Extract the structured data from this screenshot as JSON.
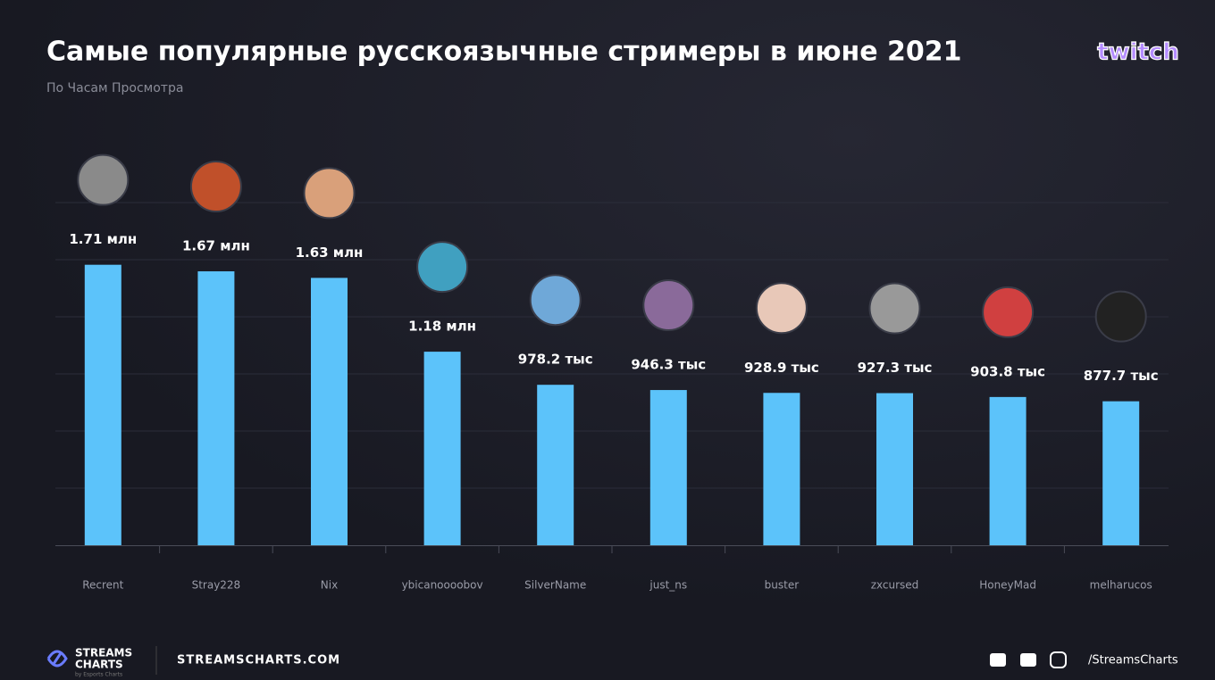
{
  "chart_data": {
    "type": "bar",
    "title": "Самые популярные русскоязычные стримеры в июне 2021",
    "subtitle": "По Часам Просмотра",
    "categories": [
      "Recrent",
      "Stray228",
      "Nix",
      "ybicanoooobov",
      "SilverName",
      "just_ns",
      "buster",
      "zxcursed",
      "HoneyMad",
      "melharucos"
    ],
    "values": [
      1710,
      1670,
      1630,
      1180,
      978.2,
      946.3,
      928.9,
      927.3,
      903.8,
      877.7
    ],
    "value_labels": [
      "1.71 млн",
      "1.67 млн",
      "1.63 млн",
      "1.18 млн",
      "978.2 тыс",
      "946.3 тыс",
      "928.9 тыс",
      "927.3 тыс",
      "903.8 тыс",
      "877.7 тыс"
    ],
    "color": "#5cc3fa",
    "ylim": [
      0,
      2100
    ]
  },
  "brand": {
    "logo": "twitch",
    "streams": "STREAMS",
    "charts": "CHARTS",
    "by": "by Esports Charts",
    "site": "STREAMSCHARTS.COM",
    "handle": "/StreamsCharts"
  }
}
